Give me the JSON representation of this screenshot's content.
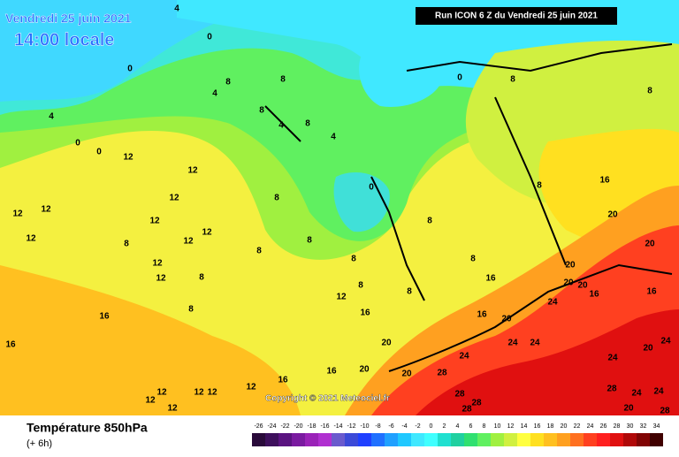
{
  "header": {
    "date": "Vendredi 25 juin 2021",
    "time": "14:00 locale",
    "run": "Run ICON 6 Z du Vendredi 25 juin 2021",
    "copyright": "Copyright © 2021 Meteociel.fr"
  },
  "footer": {
    "title": "Température 850hPa",
    "step": "(+ 6h)"
  },
  "scale": {
    "values": [
      -26,
      -24,
      -22,
      -20,
      -18,
      -16,
      -14,
      -12,
      -10,
      -8,
      -6,
      -4,
      -2,
      0,
      2,
      4,
      6,
      8,
      10,
      12,
      14,
      16,
      18,
      20,
      22,
      24,
      26,
      28,
      30,
      32,
      34
    ],
    "colors": [
      "#290a3a",
      "#3d0f5c",
      "#5a1380",
      "#7a1aa0",
      "#9a22b8",
      "#b030d0",
      "#6a5acd",
      "#3c4ad8",
      "#2040ff",
      "#2070ff",
      "#20a0ff",
      "#20c8ff",
      "#40e8ff",
      "#40ffff",
      "#20e0d0",
      "#20d0a0",
      "#30e070",
      "#60f060",
      "#a0f040",
      "#d0f040",
      "#ffff40",
      "#ffe020",
      "#ffc020",
      "#ffa020",
      "#ff7020",
      "#ff4020",
      "#ff2020",
      "#e01010",
      "#b00808",
      "#800404",
      "#400000"
    ]
  },
  "map": {
    "contour_labels": [
      "4",
      "0",
      "0",
      "8",
      "4",
      "8",
      "8",
      "4",
      "8",
      "4",
      "4",
      "0",
      "0",
      "12",
      "12",
      "12",
      "12",
      "12",
      "12",
      "12",
      "12",
      "12",
      "8",
      "12",
      "12",
      "8",
      "8",
      "8",
      "8",
      "8",
      "8",
      "8",
      "12",
      "8",
      "8",
      "8",
      "16",
      "16",
      "16",
      "20",
      "16",
      "16",
      "20",
      "20",
      "20",
      "28",
      "28",
      "28",
      "28",
      "24",
      "24",
      "24",
      "24",
      "20",
      "20",
      "20",
      "20",
      "20",
      "16",
      "16",
      "16",
      "8",
      "0",
      "0",
      "16",
      "16",
      "12",
      "12",
      "12",
      "12",
      "12",
      "12",
      "24",
      "24",
      "20",
      "24",
      "24",
      "20",
      "28",
      "28",
      "8",
      "8"
    ]
  }
}
